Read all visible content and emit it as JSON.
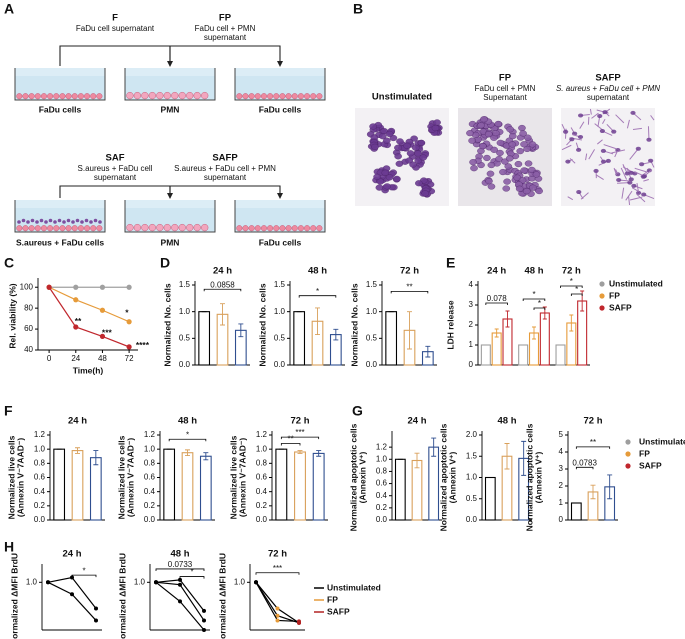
{
  "diagram_a": {
    "panel": "A",
    "steps": [
      {
        "label": "F",
        "caption": [
          "FaDu cell supernatant"
        ]
      },
      {
        "label": "FP",
        "caption": [
          "FaDu cell + PMN",
          "supernatant"
        ]
      },
      {
        "label": "SAF",
        "caption": [
          "S.aureus + FaDu cell",
          "supernatant"
        ]
      },
      {
        "label": "SAFP",
        "caption": [
          "S.aureus + FaDu cell + PMN",
          "supernatant"
        ]
      }
    ],
    "rows": [
      [
        "FaDu cells",
        "PMN",
        "FaDu cells"
      ],
      [
        "S.aureus + FaDu cells",
        "PMN",
        "FaDu cells"
      ]
    ]
  },
  "images_b": {
    "panel": "B",
    "images": [
      {
        "title": "Unstimulated"
      },
      {
        "title": "FP",
        "caption": [
          "FaDu cell + PMN",
          "Supernatant"
        ]
      },
      {
        "title": "SAFP",
        "caption": [
          "S. aureus + FaDu cell + PMN",
          "supernatant"
        ]
      }
    ]
  },
  "chart_data": [
    {
      "type": "line",
      "panel": "C",
      "ylabel": "Rel. viability (%)",
      "xlabel": "Time(h)",
      "x": [
        0,
        24,
        48,
        72
      ],
      "xlim": [
        -10,
        80
      ],
      "xticks": [
        0,
        24,
        48,
        72
      ],
      "ylim": [
        40,
        105
      ],
      "yticks": [
        40,
        60,
        80,
        100
      ],
      "series": [
        {
          "name": "Unstimulated",
          "color": "#a0a0a0",
          "values": [
            100,
            100,
            100,
            100
          ]
        },
        {
          "name": "FP",
          "color": "#e69b3a",
          "values": [
            100,
            88,
            78,
            67
          ]
        },
        {
          "name": "SAFP",
          "color": "#c0272d",
          "values": [
            100,
            62,
            53,
            43
          ]
        }
      ],
      "annotations": [
        "**",
        "***",
        "****",
        "*"
      ]
    },
    {
      "type": "bar",
      "panel": "D",
      "title": "24 h",
      "ylabel": "Normalized No. cells",
      "categories": [
        null,
        null,
        null
      ],
      "values": [
        1.0,
        0.95,
        0.65
      ],
      "errors": [
        0,
        0.2,
        0.12
      ],
      "colors": [
        "#000000",
        "#d9a05b",
        "#2f4e8f"
      ],
      "ylim": [
        0,
        1.5
      ],
      "yticks": [
        {
          "value": 0,
          "label": "0.0"
        },
        0.5,
        {
          "value": 1,
          "label": "1.0"
        },
        1.5
      ],
      "annotations": [
        "0.0858"
      ]
    },
    {
      "type": "bar",
      "title": "48 h",
      "ylabel": "Normalized No. cells",
      "categories": [
        null,
        null,
        null
      ],
      "values": [
        1.0,
        0.82,
        0.57
      ],
      "errors": [
        0,
        0.25,
        0.1
      ],
      "colors": [
        "#000000",
        "#d9a05b",
        "#2f4e8f"
      ],
      "ylim": [
        0,
        1.5
      ],
      "yticks": [
        {
          "value": 0,
          "label": "0.0"
        },
        0.5,
        {
          "value": 1,
          "label": "1.0"
        },
        1.5
      ],
      "annotations": [
        "*"
      ]
    },
    {
      "type": "bar",
      "title": "72 h",
      "ylabel": "Normalized No. cells",
      "categories": [
        null,
        null,
        null
      ],
      "values": [
        1.0,
        0.65,
        0.25
      ],
      "errors": [
        0,
        0.35,
        0.1
      ],
      "colors": [
        "#000000",
        "#d9a05b",
        "#2f4e8f"
      ],
      "ylim": [
        0,
        1.5
      ],
      "yticks": [
        {
          "value": 0,
          "label": "0.0"
        },
        0.5,
        {
          "value": 1,
          "label": "1.0"
        },
        1.5
      ],
      "annotations": [
        "**"
      ]
    },
    {
      "type": "bar",
      "panel": "E",
      "ylabel": "LDH release",
      "categories": [
        "24 h",
        "48 h",
        "72 h"
      ],
      "legend": true,
      "series": [
        {
          "name": "Unstimulated",
          "color": "#9e9e9e",
          "values": [
            1,
            1,
            1
          ],
          "errors": [
            0,
            0,
            0
          ]
        },
        {
          "name": "FP",
          "color": "#e69b3a",
          "values": [
            1.6,
            1.6,
            2.1
          ],
          "errors": [
            0.2,
            0.3,
            0.4
          ]
        },
        {
          "name": "SAFP",
          "color": "#c0272d",
          "values": [
            2.3,
            2.6,
            3.2
          ],
          "errors": [
            0.4,
            0.3,
            0.5
          ]
        }
      ],
      "ylim": [
        0,
        4
      ],
      "yticks": [
        0,
        1,
        2,
        3,
        4
      ],
      "annotations": [
        "0.078",
        "*",
        "*",
        "*",
        "*"
      ]
    },
    {
      "type": "bar",
      "panel": "F",
      "title": "24 h",
      "ylabel": [
        "Normalized live cells",
        "(Annexin V⁻7AAD⁻)"
      ],
      "categories": [
        null,
        null,
        null
      ],
      "values": [
        1.0,
        0.98,
        0.88
      ],
      "errors": [
        0,
        0.04,
        0.1
      ],
      "colors": [
        "#000000",
        "#d9a05b",
        "#2f4e8f"
      ],
      "ylim": [
        0,
        1.2
      ],
      "yticks": [
        {
          "value": 0,
          "label": "0.0"
        },
        0.2,
        0.4,
        0.6,
        0.8,
        {
          "value": 1,
          "label": "1.0"
        },
        1.2
      ],
      "annotations": []
    },
    {
      "type": "bar",
      "title": "48 h",
      "ylabel": [
        "Normalized live cells",
        "(Annexin V⁻7AAD⁻)"
      ],
      "categories": [
        null,
        null,
        null
      ],
      "values": [
        1.0,
        0.95,
        0.9
      ],
      "errors": [
        0,
        0.04,
        0.05
      ],
      "colors": [
        "#000000",
        "#d9a05b",
        "#2f4e8f"
      ],
      "ylim": [
        0,
        1.2
      ],
      "yticks": [
        {
          "value": 0,
          "label": "0.0"
        },
        0.2,
        0.4,
        0.6,
        0.8,
        {
          "value": 1,
          "label": "1.0"
        },
        1.2
      ],
      "annotations": [
        "*"
      ]
    },
    {
      "type": "bar",
      "title": "72 h",
      "ylabel": [
        "Normalized live cells",
        "(Annexin V⁻7AAD⁻)"
      ],
      "categories": [
        null,
        null,
        null
      ],
      "values": [
        1.0,
        0.96,
        0.94
      ],
      "errors": [
        0,
        0.02,
        0.04
      ],
      "colors": [
        "#000000",
        "#d9a05b",
        "#2f4e8f"
      ],
      "ylim": [
        0,
        1.2
      ],
      "yticks": [
        {
          "value": 0,
          "label": "0.0"
        },
        0.2,
        0.4,
        0.6,
        0.8,
        {
          "value": 1,
          "label": "1.0"
        },
        1.2
      ],
      "annotations": [
        "***",
        "**"
      ]
    },
    {
      "type": "bar",
      "panel": "G",
      "title": "24 h",
      "ylabel": [
        "Normalized apoptotic cells",
        "(Annexin V⁺)"
      ],
      "categories": [
        null,
        null,
        null
      ],
      "values": [
        1.0,
        0.98,
        1.2
      ],
      "errors": [
        0,
        0.12,
        0.15
      ],
      "colors": [
        "#000000",
        "#d9a05b",
        "#2f4e8f"
      ],
      "ylim": [
        0,
        1.4
      ],
      "yticks": [
        {
          "value": 0,
          "label": "0.0"
        },
        0.2,
        0.4,
        0.6,
        0.8,
        {
          "value": 1,
          "label": "1.0"
        },
        1.2
      ],
      "annotations": []
    },
    {
      "type": "bar",
      "title": "48 h",
      "ylabel": [
        "Normalized apoptotic cells",
        "(Annexin V⁺)"
      ],
      "categories": [
        null,
        null,
        null
      ],
      "values": [
        1.0,
        1.5,
        1.45
      ],
      "errors": [
        0,
        0.3,
        0.4
      ],
      "colors": [
        "#000000",
        "#d9a05b",
        "#2f4e8f"
      ],
      "ylim": [
        0,
        2
      ],
      "yticks": [
        {
          "value": 0,
          "label": "0.0"
        },
        0.5,
        {
          "value": 1,
          "label": "1.0"
        },
        1.5,
        {
          "value": 2,
          "label": "2.0"
        }
      ],
      "annotations": []
    },
    {
      "type": "bar",
      "title": "72 h",
      "ylabel": [
        "Normalized apoptotic cells",
        "(Annexin V⁺)"
      ],
      "categories": [
        null,
        null,
        null
      ],
      "values": [
        1.0,
        1.65,
        1.95
      ],
      "errors": [
        0,
        0.4,
        0.7
      ],
      "colors": [
        "#000000",
        "#d9a05b",
        "#2f4e8f"
      ],
      "ylim": [
        0,
        5
      ],
      "yticks": [
        0,
        1,
        2,
        3,
        4,
        5
      ],
      "annotations": [
        "0.0783",
        "**"
      ],
      "legend_entries": [
        {
          "name": "Unstimulated",
          "color": "#9e9e9e"
        },
        {
          "name": "FP",
          "color": "#e69b3a"
        },
        {
          "name": "SAFP",
          "color": "#c0272d"
        }
      ]
    },
    {
      "type": "line",
      "panel": "H",
      "title": "24 h",
      "ylabel": "Normalized ΔMFI BrdU",
      "categories": [
        null,
        null,
        null
      ],
      "ylim": [
        0,
        1.3
      ],
      "yticks": [
        {
          "value": 1,
          "label": "1.0"
        }
      ],
      "series": [
        {
          "color": "#000000",
          "values": [
            1.0,
            1.1,
            0.45
          ]
        },
        {
          "color": "#000000",
          "values": [
            1.0,
            0.75,
            0.2
          ]
        }
      ],
      "annotations": [
        "*"
      ]
    },
    {
      "type": "line",
      "title": "48 h",
      "ylabel": "Normalized ΔMFI BrdU",
      "categories": [
        null,
        null,
        null
      ],
      "ylim": [
        0,
        1.3
      ],
      "yticks": [
        {
          "value": 1,
          "label": "1.0"
        }
      ],
      "series": [
        {
          "color": "#000000",
          "values": [
            1.0,
            1.05,
            0.4
          ]
        },
        {
          "color": "#000000",
          "values": [
            1.0,
            0.95,
            0.2
          ]
        },
        {
          "color": "#000000",
          "values": [
            1.0,
            0.6,
            0.0
          ]
        }
      ],
      "annotations": [
        "0.0733",
        "*"
      ]
    },
    {
      "type": "line",
      "title": "72 h",
      "ylabel": "Normalized ΔMFI BrdU",
      "categories": [
        null,
        null,
        null
      ],
      "ylim": [
        0,
        1.3
      ],
      "yticks": [
        {
          "value": 1,
          "label": "1.0"
        }
      ],
      "series": [
        {
          "color": "#000000",
          "values": [
            1.0,
            0.45,
            0.15
          ]
        },
        {
          "color": "#000000",
          "values": [
            1.0,
            0.3,
            0.15
          ]
        },
        {
          "color": "#000000",
          "values": [
            1.0,
            0.2,
            0.18
          ]
        }
      ],
      "annotations": [
        "***"
      ],
      "legend_entries": [
        {
          "name": "Unstimulated",
          "color": "#000000"
        },
        {
          "name": "FP",
          "color": "#e69b3a"
        },
        {
          "name": "SAFP",
          "color": "#b22222"
        }
      ]
    }
  ]
}
